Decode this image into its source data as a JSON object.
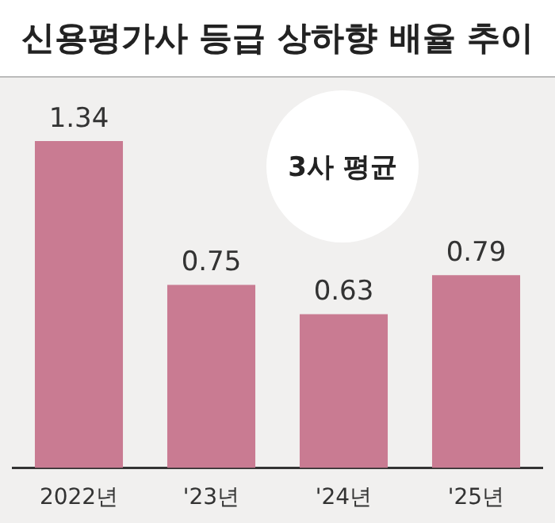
{
  "chart_data": {
    "type": "bar",
    "title": "신용평가사 등급 상하향 배율 추이",
    "annotations": [
      "3사 평균"
    ],
    "categories": [
      "2022년",
      "'23년",
      "'24년",
      "'25년"
    ],
    "values": [
      1.34,
      0.75,
      0.63,
      0.79
    ],
    "color": "#c97b92",
    "data_labels": true,
    "grid": false,
    "legend": false
  }
}
